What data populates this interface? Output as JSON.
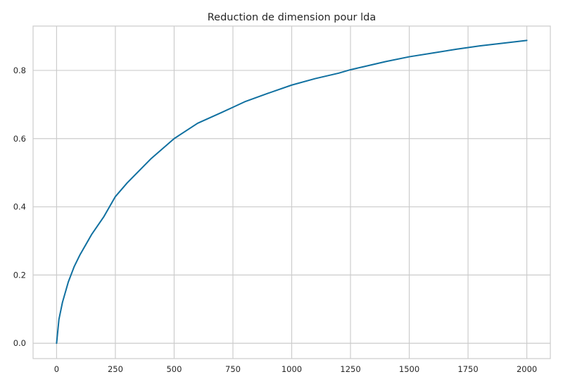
{
  "chart_data": {
    "type": "line",
    "title": "Reduction de dimension pour lda",
    "xlabel": "",
    "ylabel": "",
    "xlim": [
      -100,
      2100
    ],
    "ylim": [
      -0.045,
      0.93
    ],
    "xticks": [
      0,
      250,
      500,
      750,
      1000,
      1250,
      1500,
      1750,
      2000
    ],
    "xtick_labels": [
      "0",
      "250",
      "500",
      "750",
      "1000",
      "1250",
      "1500",
      "1750",
      "2000"
    ],
    "yticks": [
      0.0,
      0.2,
      0.4,
      0.6,
      0.8
    ],
    "ytick_labels": [
      "0.0",
      "0.2",
      "0.4",
      "0.6",
      "0.8"
    ],
    "grid": true,
    "series": [
      {
        "color": "#1070a0",
        "x": [
          0,
          10,
          25,
          50,
          75,
          100,
          150,
          200,
          250,
          300,
          400,
          500,
          600,
          700,
          750,
          800,
          900,
          1000,
          1100,
          1200,
          1250,
          1300,
          1400,
          1500,
          1600,
          1700,
          1750,
          1800,
          1900,
          2000
        ],
        "y": [
          0.0,
          0.07,
          0.12,
          0.18,
          0.225,
          0.26,
          0.32,
          0.37,
          0.43,
          0.47,
          0.54,
          0.6,
          0.645,
          0.676,
          0.692,
          0.708,
          0.733,
          0.757,
          0.776,
          0.792,
          0.802,
          0.81,
          0.826,
          0.84,
          0.851,
          0.862,
          0.867,
          0.872,
          0.88,
          0.888
        ]
      }
    ]
  }
}
